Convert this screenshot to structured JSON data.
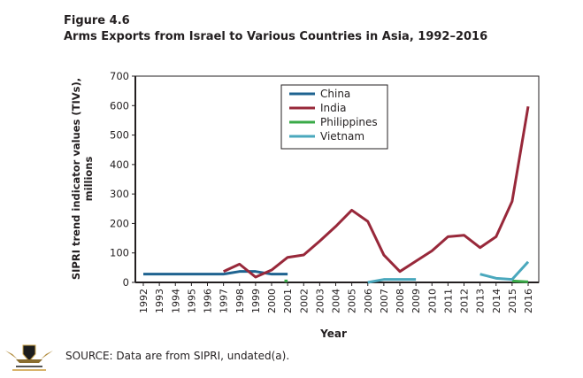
{
  "figure_label": "Figure 4.6",
  "source": "SOURCE: Data are from SIPRI, undated(a).",
  "chart_data": {
    "type": "line",
    "title": "Arms Exports from Israel to Various Countries in Asia, 1992–2016",
    "xlabel": "Year",
    "ylabel": [
      "SIPRI trend indicator values (TIVs),",
      "millions"
    ],
    "ylim": [
      0,
      700
    ],
    "yticks": [
      0,
      100,
      200,
      300,
      400,
      500,
      600,
      700
    ],
    "x": [
      1992,
      1993,
      1994,
      1995,
      1996,
      1997,
      1998,
      1999,
      2000,
      2001,
      2002,
      2003,
      2004,
      2005,
      2006,
      2007,
      2008,
      2009,
      2010,
      2011,
      2012,
      2013,
      2014,
      2015,
      2016
    ],
    "legend": "top-center",
    "series": [
      {
        "name": "China",
        "color": "#1f6390",
        "segments": [
          [
            [
              1992,
              28
            ],
            [
              1993,
              28
            ],
            [
              1994,
              28
            ],
            [
              1995,
              28
            ],
            [
              1996,
              28
            ],
            [
              1997,
              28
            ],
            [
              1998,
              37
            ],
            [
              1999,
              37
            ],
            [
              2000,
              28
            ],
            [
              2001,
              28
            ]
          ]
        ]
      },
      {
        "name": "India",
        "color": "#98283a",
        "segments": [
          [
            [
              1997,
              37
            ],
            [
              1998,
              62
            ],
            [
              1999,
              18
            ],
            [
              2000,
              42
            ],
            [
              2001,
              85
            ],
            [
              2002,
              93
            ],
            [
              2003,
              140
            ],
            [
              2004,
              190
            ],
            [
              2005,
              245
            ],
            [
              2006,
              207
            ],
            [
              2007,
              93
            ],
            [
              2008,
              37
            ],
            [
              2009,
              72
            ],
            [
              2010,
              107
            ],
            [
              2011,
              155
            ],
            [
              2012,
              160
            ],
            [
              2013,
              118
            ],
            [
              2014,
              155
            ],
            [
              2015,
              275
            ],
            [
              2016,
              597
            ]
          ]
        ]
      },
      {
        "name": "Philippines",
        "color": "#3aaa48",
        "segments": [
          [
            [
              2000.8,
              5
            ],
            [
              2001,
              5
            ]
          ],
          [
            [
              2015,
              5
            ],
            [
              2016,
              2
            ]
          ]
        ]
      },
      {
        "name": "Vietnam",
        "color": "#4aa8bd",
        "segments": [
          [
            [
              2006,
              0
            ],
            [
              2007,
              10
            ],
            [
              2008,
              10
            ],
            [
              2009,
              10
            ]
          ],
          [
            [
              2013,
              28
            ],
            [
              2014,
              14
            ],
            [
              2015,
              10
            ],
            [
              2016,
              70
            ]
          ]
        ]
      }
    ]
  }
}
